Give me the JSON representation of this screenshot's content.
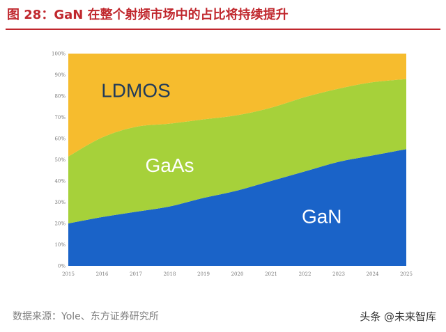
{
  "title": "图 28：GaN 在整个射频市场中的占比将持续提升",
  "source": "数据来源：Yole、东方证券研究所",
  "watermark": "头条 @未来智库",
  "chart_data": {
    "type": "area",
    "stacked": true,
    "title": "",
    "xlabel": "",
    "ylabel": "",
    "x": [
      "2015",
      "2016",
      "2017",
      "2018",
      "2019",
      "2020",
      "2021",
      "2022",
      "2023",
      "2024",
      "2025"
    ],
    "y_ticks": [
      "0%",
      "10%",
      "20%",
      "30%",
      "40%",
      "50%",
      "60%",
      "70%",
      "80%",
      "90%",
      "100%"
    ],
    "ylim": [
      0,
      100
    ],
    "grid": false,
    "legend": "none",
    "series": [
      {
        "name": "GaN",
        "values": [
          20,
          23,
          25.5,
          28,
          32,
          35.5,
          40,
          44.5,
          49,
          52,
          55
        ],
        "color": "#1a63c8",
        "label_color": "#ffffff"
      },
      {
        "name": "GaAs",
        "values": [
          31.5,
          37.5,
          40,
          39,
          37,
          35.5,
          34.5,
          35,
          34.5,
          34.5,
          33
        ],
        "color": "#a6d13a",
        "label_color": "#ffffff"
      },
      {
        "name": "LDMOS",
        "values": [
          48.5,
          39.5,
          34.5,
          33,
          31,
          29,
          25.5,
          20.5,
          16.5,
          13.5,
          12
        ],
        "color": "#f6bc2e",
        "label_color": "#1f3a5a"
      }
    ]
  }
}
